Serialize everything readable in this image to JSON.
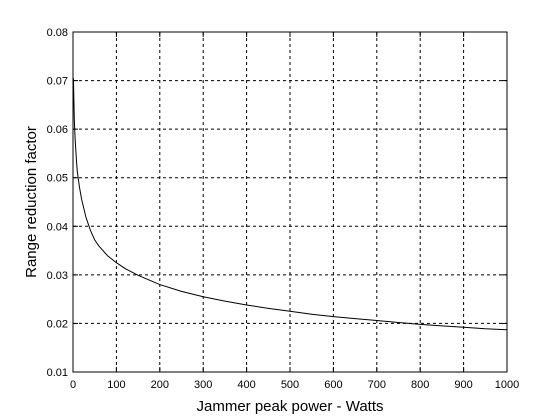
{
  "chart_data": {
    "type": "line",
    "title": "",
    "xlabel": "Jammer peak power - Watts",
    "ylabel": "Range reduction factor",
    "xlim": [
      0,
      1000
    ],
    "ylim": [
      0.01,
      0.08
    ],
    "xticks": [
      0,
      100,
      200,
      300,
      400,
      500,
      600,
      700,
      800,
      900,
      1000
    ],
    "yticks": [
      0.01,
      0.02,
      0.03,
      0.04,
      0.05,
      0.06,
      0.07,
      0.08
    ],
    "xtick_labels": [
      "0",
      "100",
      "200",
      "300",
      "400",
      "500",
      "600",
      "700",
      "800",
      "900",
      "1000"
    ],
    "ytick_labels": [
      "0.01",
      "0.02",
      "0.03",
      "0.04",
      "0.05",
      "0.06",
      "0.07",
      "0.08"
    ],
    "grid": true,
    "series": [
      {
        "color": "#000000",
        "x": [
          1,
          2,
          3,
          5,
          8,
          10,
          15,
          20,
          30,
          40,
          50,
          60,
          80,
          100,
          120,
          150,
          200,
          250,
          300,
          350,
          400,
          450,
          500,
          550,
          600,
          650,
          700,
          750,
          800,
          850,
          900,
          950,
          1000
        ],
        "y": [
          0.0705,
          0.0662,
          0.062,
          0.0578,
          0.0535,
          0.0512,
          0.048,
          0.0455,
          0.0418,
          0.0392,
          0.0372,
          0.0359,
          0.0339,
          0.0325,
          0.0313,
          0.0299,
          0.028,
          0.0266,
          0.0255,
          0.0246,
          0.0238,
          0.0231,
          0.0225,
          0.0219,
          0.0214,
          0.021,
          0.0206,
          0.0202,
          0.0198,
          0.0195,
          0.0192,
          0.0189,
          0.0187
        ]
      }
    ]
  }
}
